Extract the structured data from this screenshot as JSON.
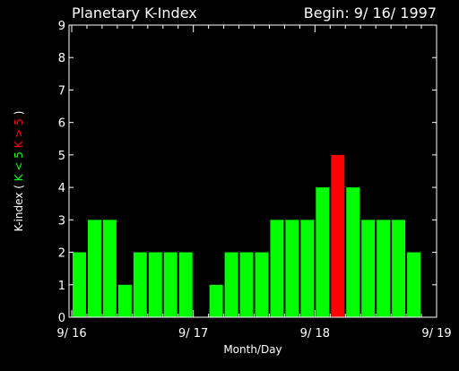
{
  "chart_data": {
    "type": "bar",
    "title": "Planetary K-Index",
    "subtitle": "Begin: 9/ 16/ 1997",
    "xlabel": "Month/Day",
    "ylabel_parts": [
      {
        "text": "K-index",
        "color": "#ffffff"
      },
      {
        "text": "(",
        "color": "#ffffff"
      },
      {
        "text": "K < 5",
        "color": "#00ff00"
      },
      {
        "text": "K > 5",
        "color": "#ff0000"
      },
      {
        "text": ")",
        "color": "#ffffff"
      }
    ],
    "ylim": [
      0,
      9
    ],
    "yticks": [
      "0",
      "1",
      "2",
      "3",
      "4",
      "5",
      "6",
      "7",
      "8",
      "9"
    ],
    "xlim_days": [
      0,
      3
    ],
    "xtick_labels": [
      "9/ 16",
      "9/ 17",
      "9/ 18",
      "9/ 19"
    ],
    "interval_hours": 3,
    "values": [
      2,
      3,
      3,
      1,
      2,
      2,
      2,
      2,
      0,
      1,
      2,
      2,
      2,
      3,
      3,
      3,
      4,
      5,
      4,
      3,
      3,
      3,
      2,
      0
    ],
    "threshold": 5,
    "colors": {
      "below": "#00ff00",
      "at_or_above": "#ff0000",
      "axes": "#ffffff",
      "background": "#000000"
    },
    "grid": false,
    "legend": "none"
  }
}
